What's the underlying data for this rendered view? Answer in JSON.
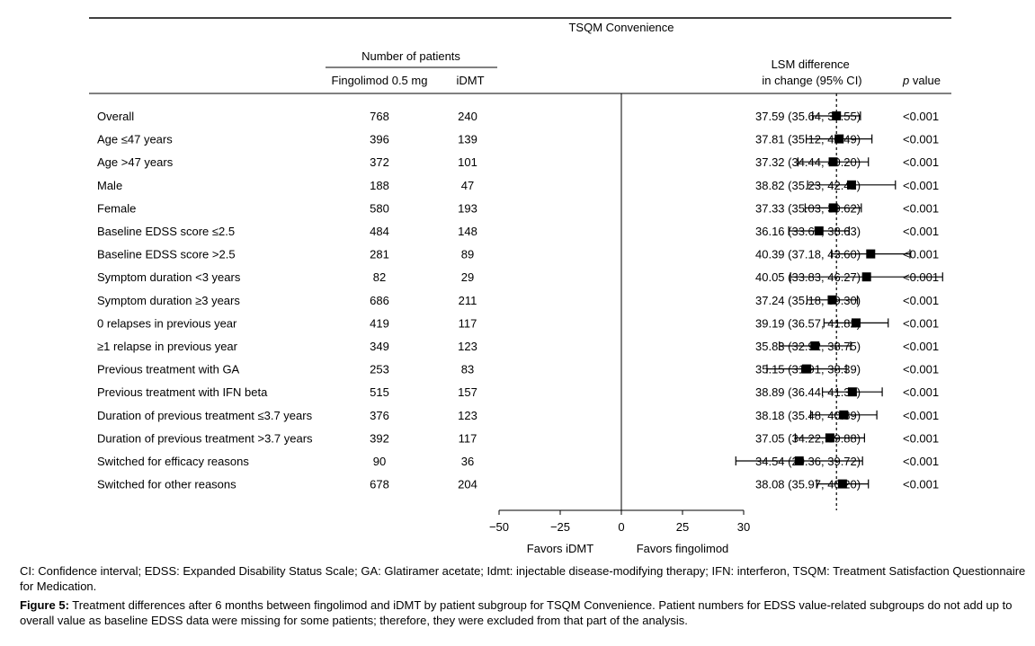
{
  "chart_data": {
    "type": "forest",
    "title": "TSQM Convenience",
    "column_group_header": "Number of patients",
    "columns": {
      "fingolimod": "Fingolimod 0.5 mg",
      "idmt": "iDMT",
      "estimate": "LSM difference\nin change (95% CI)",
      "pvalue": "p value"
    },
    "x_ticks": [
      -50,
      -25,
      0,
      25,
      30
    ],
    "x_tick_labels": [
      "−50",
      "−25",
      "0",
      "25",
      "30"
    ],
    "axis_direction_labels": {
      "left": "Favors iDMT",
      "right": "Favors fingolimod"
    },
    "reference_value": 37.59,
    "rows": [
      {
        "label": "Overall",
        "n_fingolimod": "768",
        "n_idmt": "240",
        "estimate": 37.59,
        "ci": [
          35.64,
          39.55
        ],
        "estimate_text": "37.59 (35.64, 39.55)",
        "p": "<0.001"
      },
      {
        "label": "Age ≤47 years",
        "n_fingolimod": "396",
        "n_idmt": "139",
        "estimate": 37.81,
        "ci": [
          35.12,
          40.49
        ],
        "estimate_text": "37.81 (35.12, 40.49)",
        "p": "<0.001"
      },
      {
        "label": "Age >47 years",
        "n_fingolimod": "372",
        "n_idmt": "101",
        "estimate": 37.32,
        "ci": [
          34.44,
          40.2
        ],
        "estimate_text": "37.32 (34.44, 40.20)",
        "p": "<0.001"
      },
      {
        "label": "Male",
        "n_fingolimod": "188",
        "n_idmt": "47",
        "estimate": 38.82,
        "ci": [
          35.23,
          42.41
        ],
        "estimate_text": "38.82 (35.23, 42.41)",
        "p": "<0.001"
      },
      {
        "label": "Female",
        "n_fingolimod": "580",
        "n_idmt": "193",
        "estimate": 37.33,
        "ci": [
          35.03,
          39.62
        ],
        "estimate_text": "37.33 (35.03, 39.62)",
        "p": "<0.001"
      },
      {
        "label": "Baseline EDSS score ≤2.5",
        "n_fingolimod": "484",
        "n_idmt": "148",
        "estimate": 36.16,
        "ci": [
          33.69,
          38.63
        ],
        "estimate_text": "36.16 (33.69, 38.63)",
        "p": "<0.001"
      },
      {
        "label": "Baseline EDSS score >2.5",
        "n_fingolimod": "281",
        "n_idmt": "89",
        "estimate": 40.39,
        "ci": [
          37.18,
          43.6
        ],
        "estimate_text": "40.39 (37.18, 43.60)",
        "p": "<0.001"
      },
      {
        "label": "Symptom duration <3 years",
        "n_fingolimod": "82",
        "n_idmt": "29",
        "estimate": 40.05,
        "ci": [
          33.83,
          46.27
        ],
        "estimate_text": "40.05 (33.83, 46.27)",
        "p": "<0.001"
      },
      {
        "label": "Symptom duration ≥3 years",
        "n_fingolimod": "686",
        "n_idmt": "211",
        "estimate": 37.24,
        "ci": [
          35.18,
          39.3
        ],
        "estimate_text": "37.24 (35.18, 39.30)",
        "p": "<0.001"
      },
      {
        "label": "0 relapses in previous year",
        "n_fingolimod": "419",
        "n_idmt": "117",
        "estimate": 39.19,
        "ci": [
          36.57,
          41.82
        ],
        "estimate_text": "39.19 (36.57, 41.82)",
        "p": "<0.001"
      },
      {
        "label": "≥1 relapse in previous year",
        "n_fingolimod": "349",
        "n_idmt": "123",
        "estimate": 35.83,
        "ci": [
          32.92,
          38.75
        ],
        "estimate_text": "35.83 (32.92, 38.75)",
        "p": "<0.001"
      },
      {
        "label": "Previous treatment with GA",
        "n_fingolimod": "253",
        "n_idmt": "83",
        "estimate": 35.15,
        "ci": [
          31.91,
          38.39
        ],
        "estimate_text": "35.15 (31.91, 38.39)",
        "p": "<0.001"
      },
      {
        "label": "Previous treatment with IFN beta",
        "n_fingolimod": "515",
        "n_idmt": "157",
        "estimate": 38.89,
        "ci": [
          36.44,
          41.33
        ],
        "estimate_text": "38.89 (36.44, 41.33)",
        "p": "<0.001"
      },
      {
        "label": "Duration of previous treatment ≤3.7 years",
        "n_fingolimod": "376",
        "n_idmt": "123",
        "estimate": 38.18,
        "ci": [
          35.48,
          40.89
        ],
        "estimate_text": "38.18 (35.48, 40.89)",
        "p": "<0.001"
      },
      {
        "label": "Duration of previous treatment >3.7 years",
        "n_fingolimod": "392",
        "n_idmt": "117",
        "estimate": 37.05,
        "ci": [
          34.22,
          39.88
        ],
        "estimate_text": "37.05 (34.22, 39.88)",
        "p": "<0.001"
      },
      {
        "label": "Switched for efficacy reasons",
        "n_fingolimod": "90",
        "n_idmt": "36",
        "estimate": 34.54,
        "ci": [
          29.36,
          39.72
        ],
        "estimate_text": "34.54 (29.36, 39.72)",
        "p": "<0.001"
      },
      {
        "label": "Switched for other reasons",
        "n_fingolimod": "678",
        "n_idmt": "204",
        "estimate": 38.08,
        "ci": [
          35.97,
          40.2
        ],
        "estimate_text": "38.08 (35.97, 40.20)",
        "p": "<0.001"
      }
    ]
  },
  "caption": {
    "notes": "CI: Confidence interval; EDSS: Expanded Disability Status Scale; GA: Glatiramer acetate; Idmt: injectable disease-modifying therapy; IFN: interferon, TSQM: Treatment Satisfaction Questionnaire for Medication.",
    "figure_label": "Figure 5:",
    "figure_text": " Treatment differences after 6 months between fingolimod and iDMT by patient subgroup for TSQM Convenience. Patient numbers for EDSS value-related subgroups do not add up to overall value as baseline EDSS data were missing for some patients; therefore, they were excluded from that part of the analysis."
  }
}
